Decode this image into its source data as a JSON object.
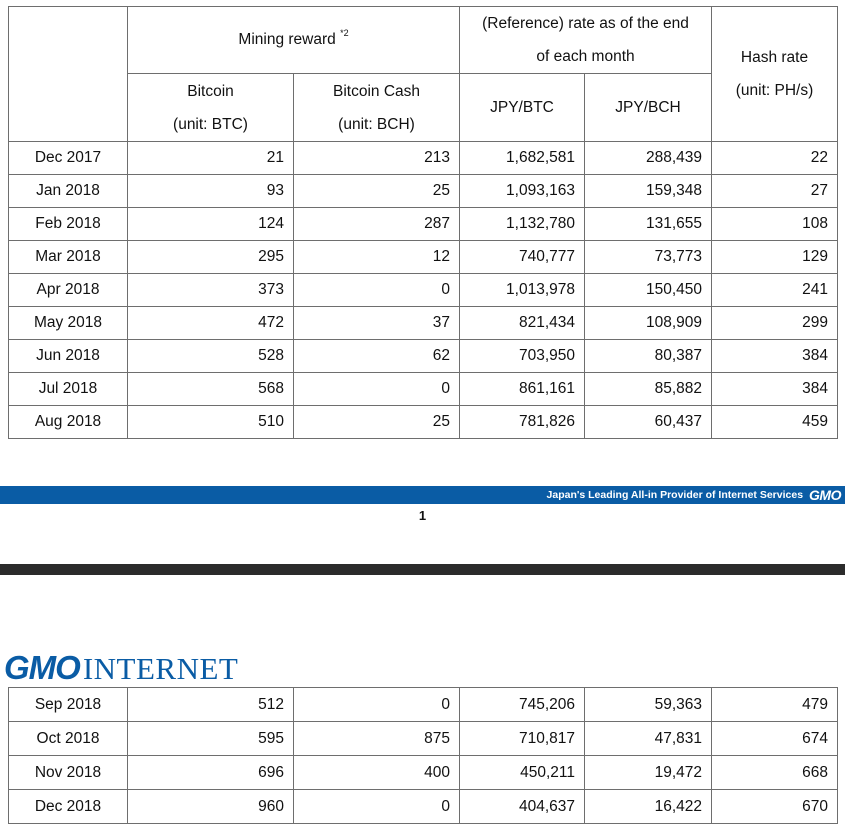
{
  "header": {
    "mining_reward": "Mining reward",
    "mining_reward_note": "*2",
    "rate_line1": "(Reference) rate as of the end",
    "rate_line2": "of each month",
    "hash_line1": "Hash rate",
    "hash_line2": "(unit: PH/s)",
    "bitcoin": "Bitcoin",
    "bitcoin_unit": "(unit: BTC)",
    "bitcoin_cash": "Bitcoin Cash",
    "bitcoin_cash_unit": "(unit: BCH)",
    "jpy_btc": "JPY/BTC",
    "jpy_bch": "JPY/BCH"
  },
  "rows_page1": [
    {
      "month": "Dec 2017",
      "btc": "21",
      "bch": "213",
      "jpy_btc": "1,682,581",
      "jpy_bch": "288,439",
      "hash": "22"
    },
    {
      "month": "Jan 2018",
      "btc": "93",
      "bch": "25",
      "jpy_btc": "1,093,163",
      "jpy_bch": "159,348",
      "hash": "27"
    },
    {
      "month": "Feb 2018",
      "btc": "124",
      "bch": "287",
      "jpy_btc": "1,132,780",
      "jpy_bch": "131,655",
      "hash": "108"
    },
    {
      "month": "Mar 2018",
      "btc": "295",
      "bch": "12",
      "jpy_btc": "740,777",
      "jpy_bch": "73,773",
      "hash": "129"
    },
    {
      "month": "Apr 2018",
      "btc": "373",
      "bch": "0",
      "jpy_btc": "1,013,978",
      "jpy_bch": "150,450",
      "hash": "241"
    },
    {
      "month": "May 2018",
      "btc": "472",
      "bch": "37",
      "jpy_btc": "821,434",
      "jpy_bch": "108,909",
      "hash": "299"
    },
    {
      "month": "Jun 2018",
      "btc": "528",
      "bch": "62",
      "jpy_btc": "703,950",
      "jpy_bch": "80,387",
      "hash": "384"
    },
    {
      "month": "Jul 2018",
      "btc": "568",
      "bch": "0",
      "jpy_btc": "861,161",
      "jpy_bch": "85,882",
      "hash": "384"
    },
    {
      "month": "Aug 2018",
      "btc": "510",
      "bch": "25",
      "jpy_btc": "781,826",
      "jpy_bch": "60,437",
      "hash": "459"
    }
  ],
  "footer": {
    "tagline": "Japan's Leading All-in Provider of Internet Services",
    "brand_small": "GMO",
    "page_number": "1",
    "brand_color": "#0a5ca5"
  },
  "logo": {
    "gmo": "GMO",
    "internet": "INTERNET"
  },
  "rows_page2": [
    {
      "month": "Sep 2018",
      "btc": "512",
      "bch": "0",
      "jpy_btc": "745,206",
      "jpy_bch": "59,363",
      "hash": "479"
    },
    {
      "month": "Oct 2018",
      "btc": "595",
      "bch": "875",
      "jpy_btc": "710,817",
      "jpy_bch": "47,831",
      "hash": "674"
    },
    {
      "month": "Nov 2018",
      "btc": "696",
      "bch": "400",
      "jpy_btc": "450,211",
      "jpy_bch": "19,472",
      "hash": "668"
    },
    {
      "month": "Dec 2018",
      "btc": "960",
      "bch": "0",
      "jpy_btc": "404,637",
      "jpy_bch": "16,422",
      "hash": "670"
    }
  ]
}
